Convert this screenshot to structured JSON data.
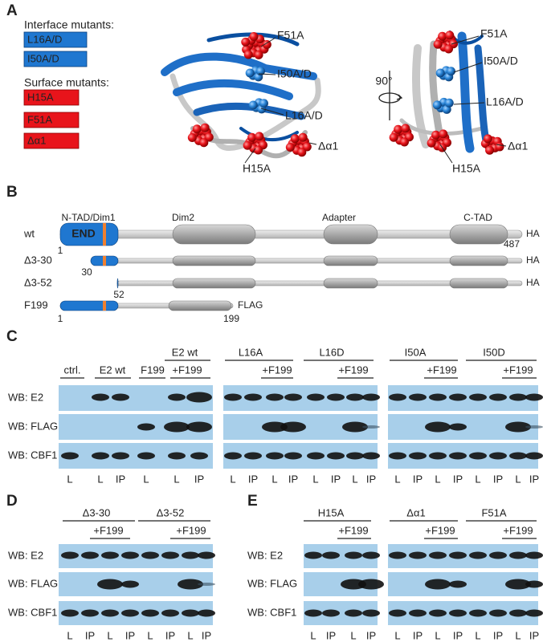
{
  "panel_a": {
    "label": "A",
    "interface_title": "Interface mutants:",
    "interface_mutants": [
      "L16A/D",
      "I50A/D"
    ],
    "surface_title": "Surface mutants:",
    "surface_mutants": [
      "H15A",
      "F51A",
      "Δα1"
    ],
    "structure_labels_left": [
      "F51A",
      "I50A/D",
      "L16A/D",
      "Δα1",
      "H15A"
    ],
    "rotation": "90°",
    "structure_labels_right": [
      "F51A",
      "I50A/D",
      "L16A/D",
      "Δα1",
      "H15A"
    ]
  },
  "panel_b": {
    "label": "B",
    "domains": [
      "N-TAD/Dim1",
      "Dim2",
      "Adapter",
      "C-TAD"
    ],
    "end_label": "END",
    "constructs": [
      {
        "name": "wt",
        "tag": "HA",
        "start": 1,
        "end": 487
      },
      {
        "name": "Δ3-30",
        "tag": "HA",
        "start": 30
      },
      {
        "name": "Δ3-52",
        "tag": "HA",
        "start": 52
      },
      {
        "name": "F199",
        "tag": "FLAG",
        "start": 1,
        "end": 199
      }
    ]
  },
  "panel_c": {
    "label": "C",
    "group_headers": [
      "E2 wt",
      "L16A",
      "L16D",
      "I50A",
      "I50D"
    ],
    "lane_headers": [
      "ctrl.",
      "E2 wt",
      "F199",
      "+F199",
      "+F199",
      "+F199",
      "+F199",
      "+F199"
    ],
    "blots": [
      "WB: E2",
      "WB: FLAG",
      "WB: CBF1"
    ],
    "lanes": [
      [
        "L",
        "L",
        "IP",
        "L",
        "L",
        "IP"
      ],
      [
        "L",
        "IP",
        "L",
        "IP",
        "L",
        "IP",
        "L",
        "IP"
      ],
      [
        "L",
        "IP",
        "L",
        "IP",
        "L",
        "IP",
        "L",
        "IP"
      ]
    ]
  },
  "panel_d": {
    "label": "D",
    "group_headers": [
      "Δ3-30",
      "Δ3-52"
    ],
    "lane_headers": [
      "+F199",
      "+F199"
    ],
    "blots": [
      "WB: E2",
      "WB: FLAG",
      "WB: CBF1"
    ],
    "lanes": [
      [
        "L",
        "IP",
        "L",
        "IP",
        "L",
        "IP",
        "L",
        "IP"
      ]
    ]
  },
  "panel_e": {
    "label": "E",
    "group_headers": [
      "H15A",
      "Δα1",
      "F51A"
    ],
    "lane_headers": [
      "+F199",
      "+F199",
      "+F199"
    ],
    "blots": [
      "WB: E2",
      "WB: FLAG",
      "WB: CBF1"
    ],
    "lanes": [
      [
        "L",
        "IP",
        "L",
        "IP"
      ],
      [
        "L",
        "IP",
        "L",
        "IP",
        "L",
        "IP",
        "L",
        "IP"
      ]
    ]
  }
}
